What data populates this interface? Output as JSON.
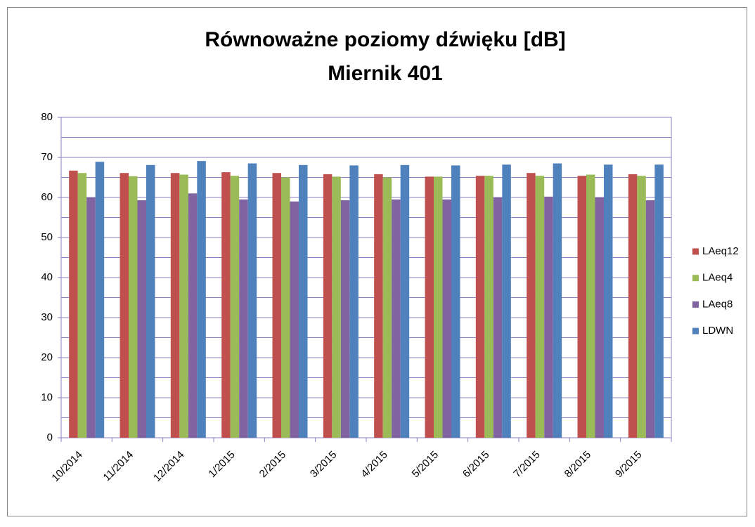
{
  "chart_data": {
    "type": "bar",
    "title": [
      "Równoważne poziomy dźwięku [dB]",
      "Miernik 401"
    ],
    "categories": [
      "10/2014",
      "11/2014",
      "12/2014",
      "1/2015",
      "2/2015",
      "3/2015",
      "4/2015",
      "5/2015",
      "6/2015",
      "7/2015",
      "8/2015",
      "9/2015"
    ],
    "series": [
      {
        "name": "LAeq12",
        "color": "#c0504d",
        "values": [
          66.7,
          66.1,
          66.1,
          66.3,
          66.1,
          65.8,
          65.8,
          65.2,
          65.4,
          66.1,
          65.4,
          65.8
        ]
      },
      {
        "name": "LAeq4",
        "color": "#9bbb59",
        "values": [
          66.1,
          65.3,
          65.7,
          65.4,
          65.0,
          65.2,
          65.0,
          65.2,
          65.4,
          65.4,
          65.7,
          65.4
        ]
      },
      {
        "name": "LAeq8",
        "color": "#8064a2",
        "values": [
          60.0,
          59.3,
          61.0,
          59.5,
          59.0,
          59.3,
          59.5,
          59.5,
          60.0,
          60.2,
          60.0,
          59.3
        ]
      },
      {
        "name": "LDWN",
        "color": "#4f81bd",
        "values": [
          68.9,
          68.1,
          69.1,
          68.5,
          68.1,
          68.0,
          68.1,
          68.0,
          68.2,
          68.5,
          68.2,
          68.2
        ]
      }
    ],
    "ylim": [
      0,
      80
    ],
    "yticks": [
      0,
      10,
      20,
      30,
      40,
      50,
      60,
      70,
      80
    ],
    "yticks_minor": [
      5,
      15,
      25,
      35,
      45,
      55,
      65,
      75
    ],
    "grid": true,
    "legend": "right"
  }
}
